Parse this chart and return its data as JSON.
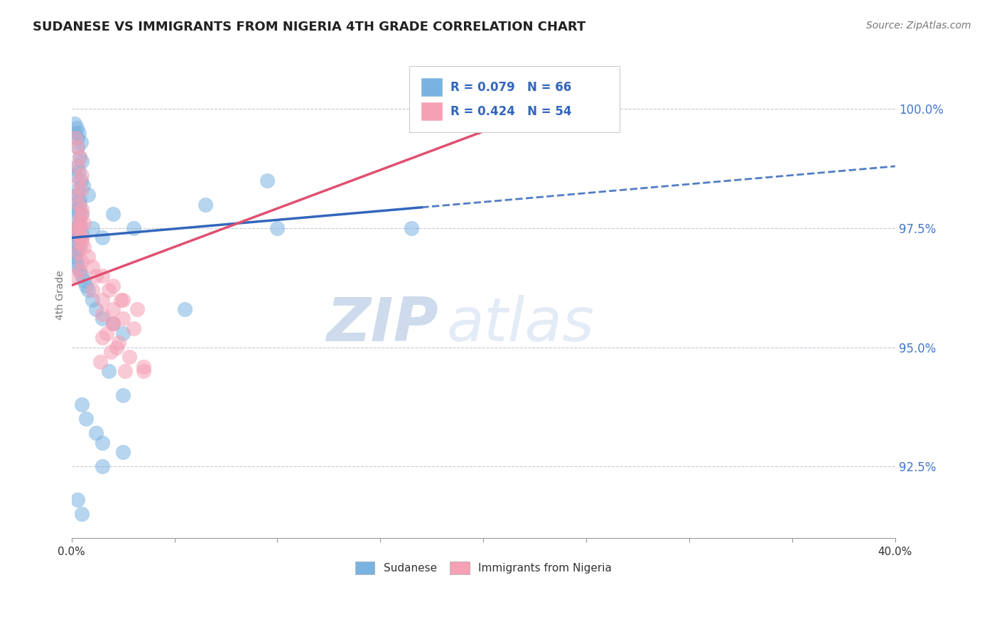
{
  "title": "SUDANESE VS IMMIGRANTS FROM NIGERIA 4TH GRADE CORRELATION CHART",
  "source": "Source: ZipAtlas.com",
  "ylabel": "4th Grade",
  "xrange": [
    0.0,
    40.0
  ],
  "yrange": [
    91.0,
    101.2
  ],
  "watermark_zip": "ZIP",
  "watermark_atlas": "atlas",
  "legend_R_blue": "R = 0.079",
  "legend_N_blue": "N = 66",
  "legend_R_pink": "R = 0.424",
  "legend_N_pink": "N = 54",
  "blue_color": "#7ab3e0",
  "pink_color": "#f5a0b5",
  "line_blue": "#3366bb",
  "line_pink": "#e05070",
  "yticks": [
    92.5,
    95.0,
    97.5,
    100.0
  ],
  "blue_line_x0": 0.0,
  "blue_line_y0": 97.3,
  "blue_line_x1": 40.0,
  "blue_line_y1": 98.8,
  "blue_solid_end": 17.0,
  "pink_line_x0": 0.0,
  "pink_line_y0": 96.3,
  "pink_line_x1": 26.0,
  "pink_line_y1": 100.5,
  "sudanese_x": [
    0.15,
    0.25,
    0.35,
    0.2,
    0.3,
    0.45,
    0.3,
    0.4,
    0.5,
    0.25,
    0.35,
    0.2,
    0.45,
    0.55,
    0.3,
    0.25,
    0.4,
    0.15,
    0.3,
    0.35,
    0.25,
    0.4,
    0.15,
    0.3,
    0.5,
    0.2,
    0.3,
    0.25,
    0.4,
    0.2,
    0.15,
    0.2,
    0.25,
    0.3,
    0.4,
    0.5,
    0.6,
    0.7,
    0.8,
    1.0,
    1.2,
    1.5,
    2.0,
    2.5,
    0.4,
    0.5,
    0.8,
    1.0,
    1.5,
    2.0,
    3.0,
    6.5,
    9.5,
    16.5,
    1.8,
    2.5,
    0.5,
    0.7,
    1.2,
    1.5,
    2.5,
    1.5,
    5.5,
    10.0,
    0.3,
    0.5
  ],
  "sudanese_y": [
    99.7,
    99.6,
    99.5,
    99.5,
    99.4,
    99.3,
    99.2,
    99.0,
    98.9,
    98.8,
    98.7,
    98.6,
    98.5,
    98.4,
    98.3,
    98.2,
    98.1,
    98.0,
    97.9,
    97.8,
    97.7,
    97.6,
    97.5,
    97.5,
    97.4,
    97.3,
    97.3,
    97.2,
    97.1,
    97.0,
    97.0,
    96.9,
    96.8,
    96.7,
    96.6,
    96.5,
    96.4,
    96.3,
    96.2,
    96.0,
    95.8,
    95.6,
    95.5,
    95.3,
    98.0,
    97.8,
    98.2,
    97.5,
    97.3,
    97.8,
    97.5,
    98.0,
    98.5,
    97.5,
    94.5,
    94.0,
    93.8,
    93.5,
    93.2,
    93.0,
    92.8,
    92.5,
    95.8,
    97.5,
    91.8,
    91.5
  ],
  "nigeria_x": [
    0.2,
    0.3,
    0.4,
    0.3,
    0.5,
    0.35,
    0.45,
    0.25,
    0.35,
    0.5,
    0.4,
    0.6,
    0.3,
    0.5,
    0.4,
    0.3,
    0.5,
    0.4,
    0.2,
    1.0,
    1.5,
    2.0,
    2.5,
    3.0,
    1.5,
    2.2,
    2.8,
    3.5,
    1.2,
    1.8,
    2.4,
    3.2,
    0.4,
    0.5,
    0.6,
    0.8,
    1.0,
    1.5,
    2.0,
    2.5,
    1.5,
    2.0,
    1.7,
    2.3,
    1.9,
    1.4,
    2.6,
    0.5,
    0.4,
    0.3,
    0.5,
    2.0,
    3.5,
    25.0
  ],
  "nigeria_y": [
    99.4,
    99.2,
    99.0,
    98.8,
    98.6,
    98.5,
    98.3,
    98.2,
    98.0,
    97.9,
    97.7,
    97.6,
    97.5,
    97.3,
    97.2,
    97.0,
    96.8,
    96.6,
    96.5,
    96.2,
    96.0,
    95.8,
    95.6,
    95.4,
    95.2,
    95.0,
    94.8,
    94.6,
    96.5,
    96.2,
    96.0,
    95.8,
    97.5,
    97.3,
    97.1,
    96.9,
    96.7,
    96.5,
    96.3,
    96.0,
    95.7,
    95.5,
    95.3,
    95.1,
    94.9,
    94.7,
    94.5,
    97.8,
    97.6,
    97.4,
    97.2,
    95.5,
    94.5,
    100.5
  ]
}
